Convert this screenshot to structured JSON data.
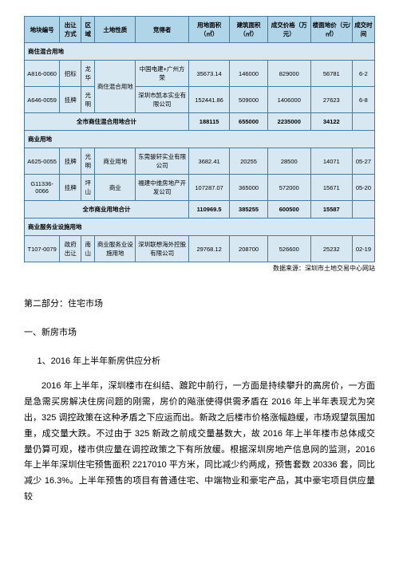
{
  "table": {
    "headers": [
      "地块编号",
      "出让方式",
      "区域",
      "土地性质",
      "竞得者",
      "用地面积（㎡）",
      "建筑面积（㎡）",
      "成交价格（万元）",
      "楼面地价（元/㎡）",
      "成交时间"
    ],
    "section1": {
      "title": "商住混合用地",
      "rows": [
        [
          "A816-0060",
          "招标",
          "龙华",
          "商住混合用地",
          "中国电建+广州方荣",
          "35673.14",
          "146000",
          "829000",
          "56781",
          "6-2"
        ],
        [
          "A646-0059",
          "挂牌",
          "光明",
          "",
          "深圳市凯本实业有限公司",
          "152441.86",
          "509000",
          "1406000",
          "27623",
          "6-8"
        ]
      ],
      "subtotal": [
        "全市商住混合用地合计",
        "",
        "",
        "",
        "",
        "188115",
        "655000",
        "2235000",
        "34122",
        ""
      ]
    },
    "section2": {
      "title": "商业用地",
      "rows": [
        [
          "A625-0055",
          "挂牌",
          "光明",
          "商业用地",
          "东莞骏轩实业有限公司",
          "3682.41",
          "20255",
          "28500",
          "14071",
          "05-27"
        ],
        [
          "G11336-0066",
          "挂牌",
          "坪山",
          "商业",
          "福建中维房地产开发公司",
          "107287.07",
          "365000",
          "572000",
          "15671",
          "05-20"
        ]
      ],
      "subtotal": [
        "全市商业用地合计",
        "",
        "",
        "",
        "",
        "110969.5",
        "385255",
        "600500",
        "15587",
        ""
      ]
    },
    "section3": {
      "title": "商业服务业设施用地",
      "rows": [
        [
          "T107-0079",
          "政府出让",
          "南山",
          "商业服务业设施用地",
          "深圳联想海外控股有限公司",
          "29768.12",
          "208700",
          "526600",
          "25232",
          "02-19"
        ]
      ]
    },
    "source": "数据来源：深圳市土地交易中心网站"
  },
  "text": {
    "section_title": "第二部分：住宅市场",
    "subsection_title": "一、新房市场",
    "item_title": "1、2016 年上半年新房供应分析",
    "paragraph": "2016 年上半年，深圳楼市在纠结、踱跎中前行，一方面是持续攀升的高房价，一方面是急需买房解决住房问题的刚需，房价的飚涨使得供需矛盾在 2016 年上半年表现尤为突出，325 调控政策在这种矛盾之下应运而出。新政之后楼市价格涨幅趋缓，市场观望氛围加重，成交量大跌。不过由于 325 新政之前成交量基数大，故 2016 年上半年楼市总体成交量仍算可观，楼市供应量在调控政策之下有所放缓。根据深圳房地产信息网的监测，2016 年上半年深圳住宅预售面积 2217010 平方米，同比减少约两成，预售套数 20336 套，同比减少 16.3%。上半年预售的项目有普通住宅、中端物业和豪宅产品，其中豪宅项目供应量较"
  },
  "styling": {
    "header_bg": "#b0d4e8",
    "cell_bg": "#d8e8f2",
    "border_color": "#4a7a9a",
    "body_bg": "#ffffff",
    "font_size_table": 7.5,
    "font_size_body": 11
  }
}
